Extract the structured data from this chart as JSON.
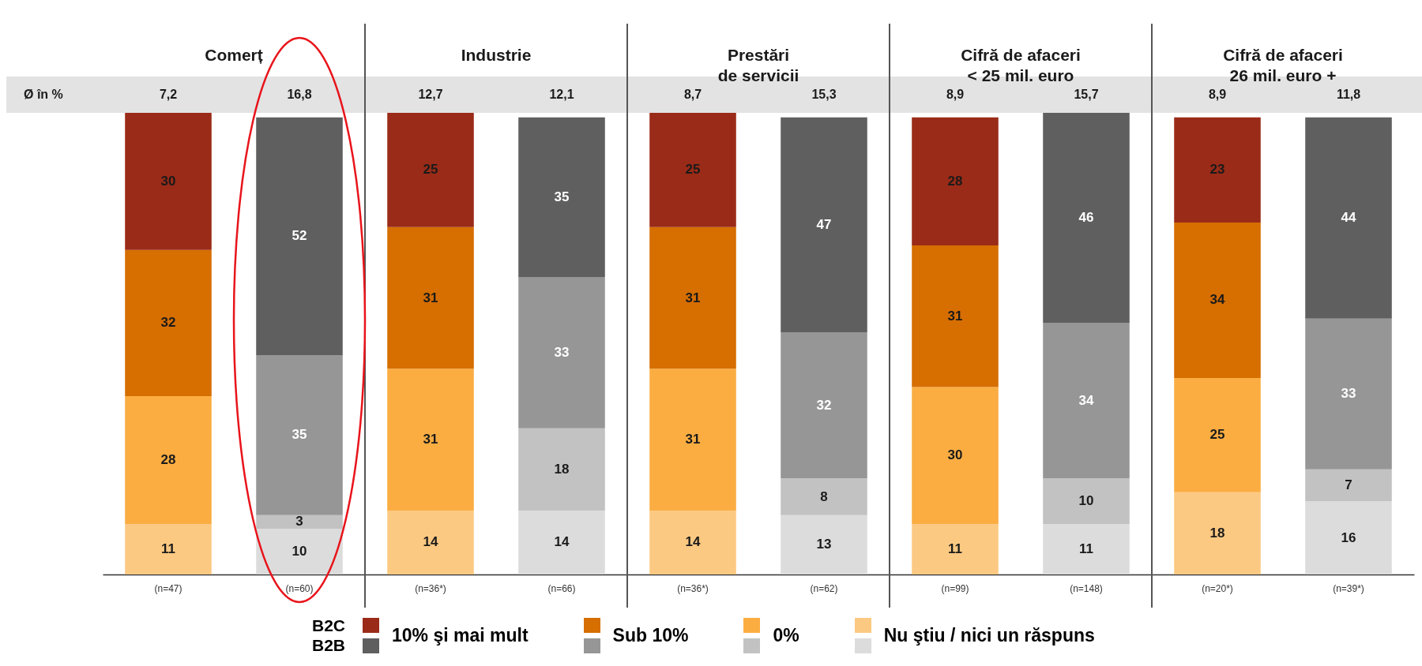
{
  "chart_data": {
    "type": "bar",
    "stacked": true,
    "data_labels": true,
    "legend": "bottom",
    "categories": [
      "(n=47)",
      "(n=60)",
      "(n=36*)",
      "(n=66)",
      "(n=36*)",
      "(n=62)",
      "(n=99)",
      "(n=148)",
      "(n=20*)",
      "(n=39*)"
    ],
    "series": [
      {
        "name": "Nu ştiu / nici un răspuns",
        "colors": [
          "#fcc982",
          "#dcdcdc",
          "#fcc982",
          "#dcdcdc",
          "#fcc982",
          "#dcdcdc",
          "#fcc982",
          "#dcdcdc",
          "#fcc982",
          "#dcdcdc"
        ],
        "values": [
          11,
          10,
          14,
          14,
          14,
          13,
          11,
          11,
          18,
          16
        ]
      },
      {
        "name": "0%",
        "colors": [
          "#fbad42",
          "#c2c2c2",
          "#fbad42",
          "#c2c2c2",
          "#fbad42",
          "#c2c2c2",
          "#fbad42",
          "#c2c2c2",
          "#fbad42",
          "#c2c2c2"
        ],
        "values": [
          28,
          3,
          31,
          18,
          31,
          8,
          30,
          10,
          25,
          7
        ]
      },
      {
        "name": "Sub 10%",
        "colors": [
          "#d66e00",
          "#969696",
          "#d66e00",
          "#969696",
          "#d66e00",
          "#969696",
          "#d66e00",
          "#969696",
          "#d66e00",
          "#969696"
        ],
        "values": [
          32,
          35,
          31,
          33,
          31,
          32,
          31,
          34,
          34,
          33
        ]
      },
      {
        "name": "10% şi mai mult",
        "colors": [
          "#9a2b18",
          "#5f5f5f",
          "#9a2b18",
          "#5f5f5f",
          "#9a2b18",
          "#5f5f5f",
          "#9a2b18",
          "#5f5f5f",
          "#9a2b18",
          "#5f5f5f"
        ],
        "values": [
          30,
          52,
          25,
          35,
          25,
          47,
          28,
          46,
          23,
          44
        ]
      }
    ],
    "annotations": [
      "Ø în %",
      "7,2",
      "16,8",
      "12,7",
      "12,1",
      "8,7",
      "15,3",
      "8,9",
      "15,7",
      "8,9",
      "11,8",
      "Comerț",
      "Industrie",
      "Prestări\nde servicii",
      "Cifră de afaceri\n< 25 mil. euro",
      "Cifră de afaceri\n26 mil. euro +",
      "B2C",
      "B2B"
    ]
  }
}
